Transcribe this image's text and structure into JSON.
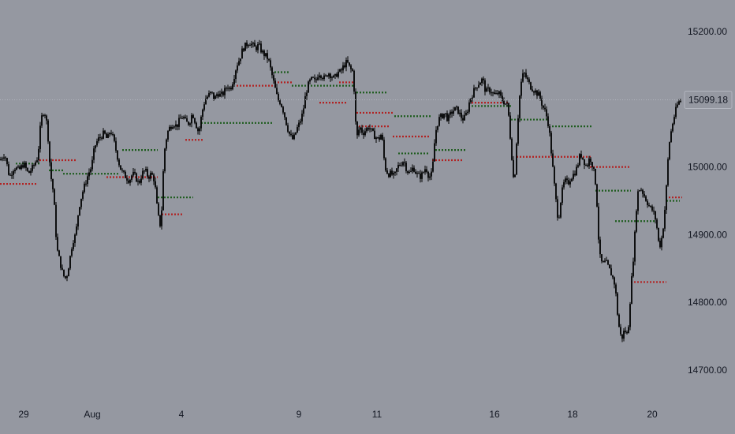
{
  "chart_data": {
    "type": "candlestick",
    "y_axis": {
      "ticks": [
        14700,
        14800,
        14900,
        15000,
        15200
      ],
      "tick_labels": [
        "14700.00",
        "14800.00",
        "14900.00",
        "15000.00",
        "15200.00"
      ],
      "range": [
        14658,
        15228
      ]
    },
    "x_axis": {
      "tick_labels": [
        "29",
        "Aug",
        "4",
        "9",
        "11",
        "16",
        "18",
        "20"
      ]
    },
    "last_price": 15099.18,
    "last_price_label": "15099.18",
    "close_path": [
      [
        0,
        15010
      ],
      [
        6,
        15020
      ],
      [
        12,
        14985
      ],
      [
        18,
        15000
      ],
      [
        24,
        14995
      ],
      [
        30,
        15005
      ],
      [
        36,
        14990
      ],
      [
        42,
        15000
      ],
      [
        48,
        15015
      ],
      [
        52,
        15070
      ],
      [
        56,
        15085
      ],
      [
        60,
        15060
      ],
      [
        64,
        14990
      ],
      [
        68,
        14960
      ],
      [
        72,
        14880
      ],
      [
        76,
        14860
      ],
      [
        80,
        14840
      ],
      [
        84,
        14835
      ],
      [
        88,
        14860
      ],
      [
        92,
        14890
      ],
      [
        96,
        14900
      ],
      [
        100,
        14940
      ],
      [
        104,
        14960
      ],
      [
        108,
        14975
      ],
      [
        112,
        14990
      ],
      [
        116,
        15000
      ],
      [
        120,
        15030
      ],
      [
        124,
        15040
      ],
      [
        128,
        15045
      ],
      [
        132,
        15050
      ],
      [
        136,
        15040
      ],
      [
        140,
        15055
      ],
      [
        144,
        15040
      ],
      [
        148,
        15020
      ],
      [
        152,
        15000
      ],
      [
        156,
        14990
      ],
      [
        160,
        14985
      ],
      [
        164,
        14980
      ],
      [
        168,
        14990
      ],
      [
        172,
        14985
      ],
      [
        176,
        14975
      ],
      [
        180,
        14990
      ],
      [
        184,
        14995
      ],
      [
        188,
        14985
      ],
      [
        192,
        14990
      ],
      [
        196,
        14980
      ],
      [
        200,
        14930
      ],
      [
        204,
        14910
      ],
      [
        208,
        15020
      ],
      [
        212,
        15050
      ],
      [
        216,
        15060
      ],
      [
        220,
        15065
      ],
      [
        224,
        15060
      ],
      [
        228,
        15070
      ],
      [
        232,
        15075
      ],
      [
        236,
        15065
      ],
      [
        240,
        15065
      ],
      [
        244,
        15080
      ],
      [
        248,
        15065
      ],
      [
        252,
        15050
      ],
      [
        256,
        15080
      ],
      [
        260,
        15100
      ],
      [
        264,
        15105
      ],
      [
        268,
        15110
      ],
      [
        272,
        15100
      ],
      [
        276,
        15110
      ],
      [
        280,
        15105
      ],
      [
        284,
        15110
      ],
      [
        288,
        15120
      ],
      [
        292,
        15115
      ],
      [
        296,
        15130
      ],
      [
        300,
        15150
      ],
      [
        304,
        15160
      ],
      [
        308,
        15175
      ],
      [
        312,
        15180
      ],
      [
        316,
        15185
      ],
      [
        320,
        15180
      ],
      [
        324,
        15175
      ],
      [
        328,
        15180
      ],
      [
        332,
        15170
      ],
      [
        336,
        15165
      ],
      [
        340,
        15160
      ],
      [
        344,
        15140
      ],
      [
        348,
        15120
      ],
      [
        352,
        15100
      ],
      [
        356,
        15095
      ],
      [
        360,
        15080
      ],
      [
        364,
        15060
      ],
      [
        368,
        15045
      ],
      [
        372,
        15040
      ],
      [
        376,
        15055
      ],
      [
        380,
        15065
      ],
      [
        384,
        15080
      ],
      [
        388,
        15110
      ],
      [
        392,
        15125
      ],
      [
        396,
        15130
      ],
      [
        400,
        15125
      ],
      [
        404,
        15140
      ],
      [
        408,
        15135
      ],
      [
        412,
        15130
      ],
      [
        416,
        15140
      ],
      [
        420,
        15135
      ],
      [
        424,
        15130
      ],
      [
        428,
        15140
      ],
      [
        432,
        15140
      ],
      [
        436,
        15150
      ],
      [
        440,
        15155
      ],
      [
        444,
        15145
      ],
      [
        448,
        15140
      ],
      [
        452,
        15040
      ],
      [
        456,
        15060
      ],
      [
        460,
        15050
      ],
      [
        464,
        15055
      ],
      [
        468,
        15060
      ],
      [
        472,
        15050
      ],
      [
        476,
        15045
      ],
      [
        480,
        15040
      ],
      [
        484,
        15050
      ],
      [
        488,
        15000
      ],
      [
        492,
        14990
      ],
      [
        496,
        14990
      ],
      [
        500,
        14985
      ],
      [
        504,
        15000
      ],
      [
        508,
        15005
      ],
      [
        512,
        15010
      ],
      [
        516,
        14995
      ],
      [
        520,
        14990
      ],
      [
        524,
        15000
      ],
      [
        528,
        14990
      ],
      [
        532,
        14985
      ],
      [
        536,
        14990
      ],
      [
        540,
        15000
      ],
      [
        544,
        14985
      ],
      [
        548,
        14990
      ],
      [
        552,
        15050
      ],
      [
        556,
        15070
      ],
      [
        560,
        15075
      ],
      [
        564,
        15080
      ],
      [
        568,
        15070
      ],
      [
        572,
        15080
      ],
      [
        576,
        15085
      ],
      [
        580,
        15085
      ],
      [
        584,
        15075
      ],
      [
        588,
        15070
      ],
      [
        592,
        15080
      ],
      [
        596,
        15100
      ],
      [
        600,
        15110
      ],
      [
        604,
        15120
      ],
      [
        608,
        15125
      ],
      [
        612,
        15130
      ],
      [
        616,
        15110
      ],
      [
        620,
        15115
      ],
      [
        624,
        15110
      ],
      [
        628,
        15105
      ],
      [
        632,
        15110
      ],
      [
        636,
        15100
      ],
      [
        640,
        15095
      ],
      [
        644,
        15090
      ],
      [
        648,
        15030
      ],
      [
        652,
        14970
      ],
      [
        656,
        15060
      ],
      [
        660,
        15120
      ],
      [
        664,
        15140
      ],
      [
        668,
        15130
      ],
      [
        672,
        15120
      ],
      [
        676,
        15115
      ],
      [
        680,
        15110
      ],
      [
        684,
        15105
      ],
      [
        688,
        15090
      ],
      [
        692,
        15080
      ],
      [
        696,
        15060
      ],
      [
        700,
        15010
      ],
      [
        704,
        14960
      ],
      [
        708,
        14920
      ],
      [
        712,
        14960
      ],
      [
        716,
        14980
      ],
      [
        720,
        14975
      ],
      [
        724,
        14985
      ],
      [
        728,
        14990
      ],
      [
        732,
        15000
      ],
      [
        736,
        15020
      ],
      [
        740,
        15010
      ],
      [
        744,
        15000
      ],
      [
        748,
        15015
      ],
      [
        752,
        15000
      ],
      [
        756,
        14970
      ],
      [
        760,
        14870
      ],
      [
        764,
        14855
      ],
      [
        768,
        14860
      ],
      [
        772,
        14850
      ],
      [
        776,
        14840
      ],
      [
        780,
        14825
      ],
      [
        784,
        14770
      ],
      [
        788,
        14745
      ],
      [
        792,
        14760
      ],
      [
        796,
        14750
      ],
      [
        800,
        14820
      ],
      [
        804,
        14880
      ],
      [
        808,
        14960
      ],
      [
        812,
        14970
      ],
      [
        816,
        14960
      ],
      [
        820,
        14950
      ],
      [
        824,
        14940
      ],
      [
        828,
        14935
      ],
      [
        832,
        14920
      ],
      [
        836,
        14880
      ],
      [
        840,
        14900
      ],
      [
        844,
        14950
      ],
      [
        848,
        15030
      ],
      [
        852,
        15060
      ],
      [
        856,
        15080
      ],
      [
        860,
        15095
      ],
      [
        864,
        15099.18
      ]
    ],
    "level_segments": [
      {
        "color": "red",
        "x1": 0,
        "x2": 48,
        "y": 14975
      },
      {
        "color": "green",
        "x1": 20,
        "x2": 50,
        "y": 15005
      },
      {
        "color": "red",
        "x1": 50,
        "x2": 98,
        "y": 15010
      },
      {
        "color": "green",
        "x1": 62,
        "x2": 80,
        "y": 14995
      },
      {
        "color": "green",
        "x1": 80,
        "x2": 150,
        "y": 14990
      },
      {
        "color": "red",
        "x1": 135,
        "x2": 200,
        "y": 14985
      },
      {
        "color": "green",
        "x1": 155,
        "x2": 200,
        "y": 15025
      },
      {
        "color": "green",
        "x1": 200,
        "x2": 245,
        "y": 14955
      },
      {
        "color": "red",
        "x1": 205,
        "x2": 232,
        "y": 14930
      },
      {
        "color": "red",
        "x1": 235,
        "x2": 258,
        "y": 15040
      },
      {
        "color": "green",
        "x1": 255,
        "x2": 345,
        "y": 15065
      },
      {
        "color": "red",
        "x1": 300,
        "x2": 350,
        "y": 15120
      },
      {
        "color": "red",
        "x1": 348,
        "x2": 372,
        "y": 15125
      },
      {
        "color": "green",
        "x1": 348,
        "x2": 368,
        "y": 15140
      },
      {
        "color": "green",
        "x1": 370,
        "x2": 450,
        "y": 15120
      },
      {
        "color": "red",
        "x1": 405,
        "x2": 440,
        "y": 15095
      },
      {
        "color": "red",
        "x1": 430,
        "x2": 450,
        "y": 15125
      },
      {
        "color": "green",
        "x1": 452,
        "x2": 490,
        "y": 15110
      },
      {
        "color": "red",
        "x1": 452,
        "x2": 500,
        "y": 15080
      },
      {
        "color": "red",
        "x1": 455,
        "x2": 495,
        "y": 15060
      },
      {
        "color": "green",
        "x1": 500,
        "x2": 548,
        "y": 15075
      },
      {
        "color": "red",
        "x1": 498,
        "x2": 545,
        "y": 15045
      },
      {
        "color": "green",
        "x1": 505,
        "x2": 545,
        "y": 15020
      },
      {
        "color": "red",
        "x1": 548,
        "x2": 588,
        "y": 15010
      },
      {
        "color": "green",
        "x1": 552,
        "x2": 592,
        "y": 15025
      },
      {
        "color": "red",
        "x1": 598,
        "x2": 645,
        "y": 15095
      },
      {
        "color": "green",
        "x1": 598,
        "x2": 650,
        "y": 15090
      },
      {
        "color": "green",
        "x1": 648,
        "x2": 695,
        "y": 15070
      },
      {
        "color": "red",
        "x1": 655,
        "x2": 750,
        "y": 15015
      },
      {
        "color": "green",
        "x1": 700,
        "x2": 750,
        "y": 15060
      },
      {
        "color": "red",
        "x1": 748,
        "x2": 798,
        "y": 15000
      },
      {
        "color": "green",
        "x1": 755,
        "x2": 800,
        "y": 14965
      },
      {
        "color": "green",
        "x1": 780,
        "x2": 830,
        "y": 14920
      },
      {
        "color": "red",
        "x1": 800,
        "x2": 845,
        "y": 14830
      },
      {
        "color": "green",
        "x1": 845,
        "x2": 862,
        "y": 14950
      },
      {
        "color": "red",
        "x1": 848,
        "x2": 865,
        "y": 14955
      }
    ],
    "colors": {
      "background": "#9598a1",
      "candle": "#000000",
      "red_level": "#b22222",
      "green_level": "#1e5c1e",
      "grid_line": "#b2b5be",
      "axis_text": "#131722"
    }
  }
}
